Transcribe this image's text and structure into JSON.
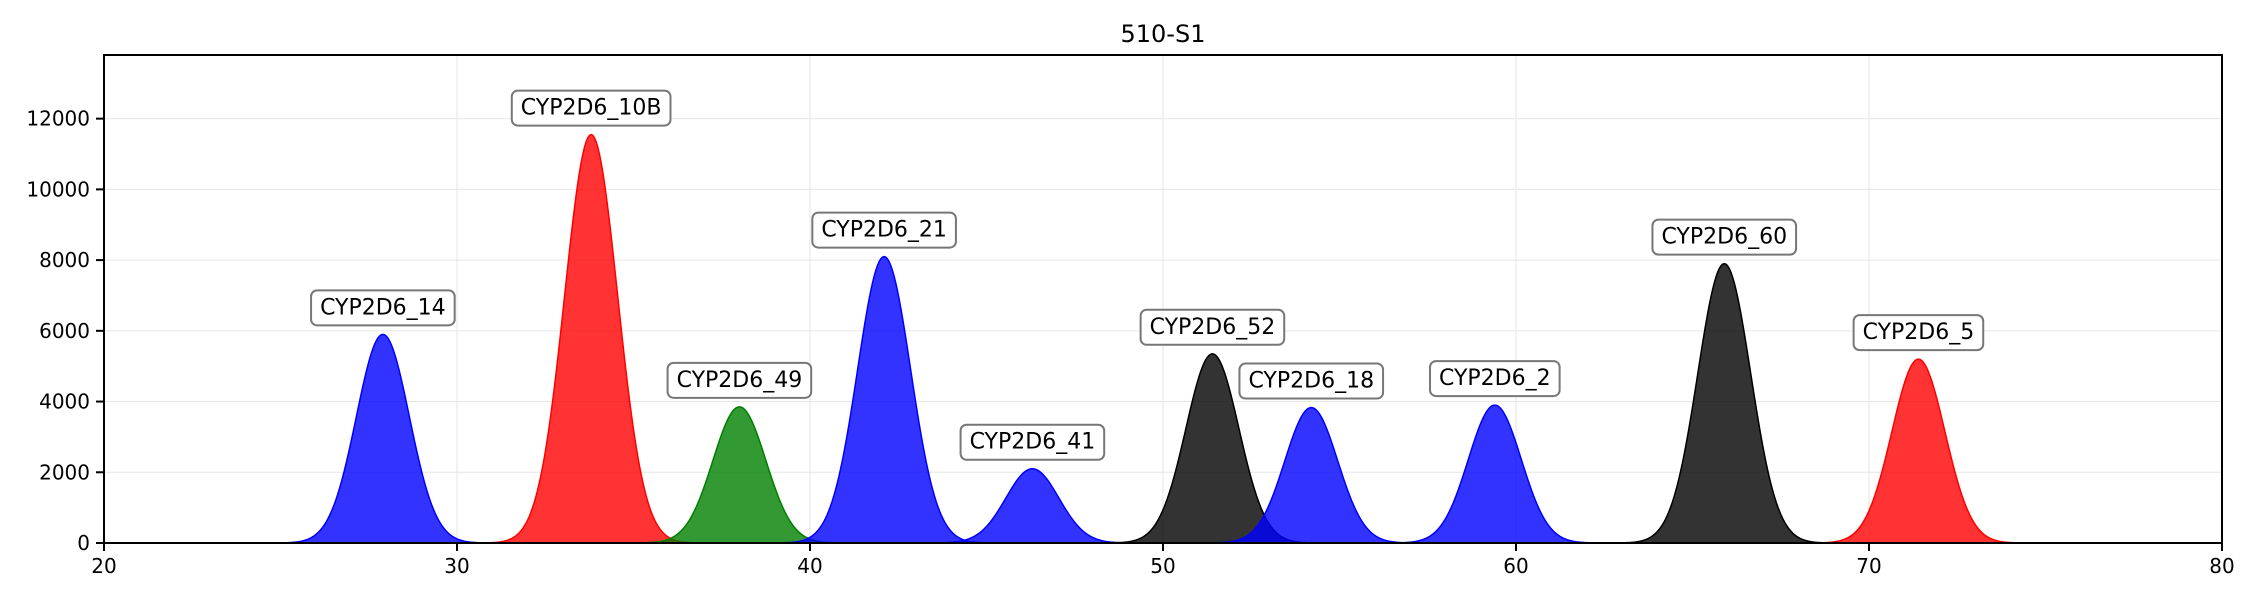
{
  "chart_data": {
    "type": "area",
    "title": "510-S1",
    "xlabel": "",
    "ylabel": "",
    "xlim": [
      20,
      80
    ],
    "ylim": [
      0,
      13800
    ],
    "xticks": [
      20,
      30,
      40,
      50,
      60,
      70,
      80
    ],
    "yticks": [
      0,
      2000,
      4000,
      6000,
      8000,
      10000,
      12000
    ],
    "grid": true,
    "legend": "none",
    "peaks": [
      {
        "label": "CYP2D6_14",
        "center": 27.9,
        "height": 5900,
        "sigma": 0.75,
        "color": "#0000ff"
      },
      {
        "label": "CYP2D6_10B",
        "center": 33.8,
        "height": 11550,
        "sigma": 0.75,
        "color": "#ff0000"
      },
      {
        "label": "CYP2D6_49",
        "center": 38.0,
        "height": 3850,
        "sigma": 0.75,
        "color": "#007f00"
      },
      {
        "label": "CYP2D6_21",
        "center": 42.1,
        "height": 8100,
        "sigma": 0.75,
        "color": "#0000ff"
      },
      {
        "label": "CYP2D6_41",
        "center": 46.3,
        "height": 2100,
        "sigma": 0.75,
        "color": "#0000ff"
      },
      {
        "label": "CYP2D6_52",
        "center": 51.4,
        "height": 5350,
        "sigma": 0.75,
        "color": "#000000"
      },
      {
        "label": "CYP2D6_18",
        "center": 54.2,
        "height": 3830,
        "sigma": 0.75,
        "color": "#0000ff"
      },
      {
        "label": "CYP2D6_2",
        "center": 59.4,
        "height": 3900,
        "sigma": 0.75,
        "color": "#0000ff"
      },
      {
        "label": "CYP2D6_60",
        "center": 65.9,
        "height": 7900,
        "sigma": 0.75,
        "color": "#000000"
      },
      {
        "label": "CYP2D6_5",
        "center": 71.4,
        "height": 5200,
        "sigma": 0.75,
        "color": "#ff0000"
      }
    ]
  }
}
